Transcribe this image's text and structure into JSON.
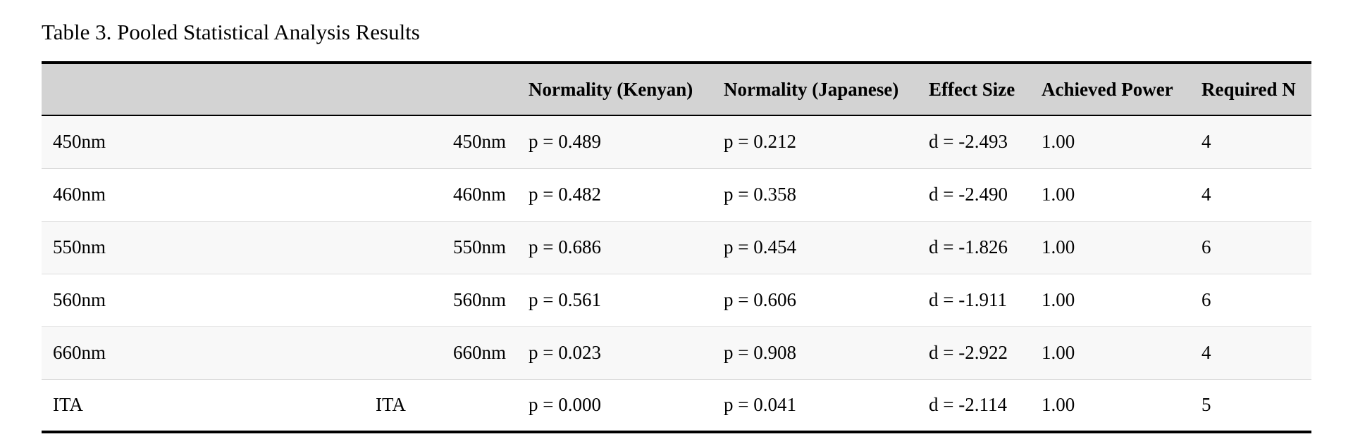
{
  "caption": "Table 3. Pooled Statistical Analysis Results",
  "headers": {
    "col1": "",
    "col2": "",
    "normality_kenyan": "Normality (Kenyan)",
    "normality_japanese": "Normality (Japanese)",
    "effect_size": "Effect Size",
    "achieved_power": "Achieved Power",
    "required_n": "Required N"
  },
  "rows": [
    {
      "name": "450nm",
      "label": "450nm",
      "normality_kenyan": "p = 0.489",
      "normality_japanese": "p = 0.212",
      "effect_size": "d = -2.493",
      "achieved_power": "1.00",
      "required_n": "4"
    },
    {
      "name": "460nm",
      "label": "460nm",
      "normality_kenyan": "p = 0.482",
      "normality_japanese": "p = 0.358",
      "effect_size": "d = -2.490",
      "achieved_power": "1.00",
      "required_n": "4"
    },
    {
      "name": "550nm",
      "label": "550nm",
      "normality_kenyan": "p = 0.686",
      "normality_japanese": "p = 0.454",
      "effect_size": "d = -1.826",
      "achieved_power": "1.00",
      "required_n": "6"
    },
    {
      "name": "560nm",
      "label": "560nm",
      "normality_kenyan": "p = 0.561",
      "normality_japanese": "p = 0.606",
      "effect_size": "d = -1.911",
      "achieved_power": "1.00",
      "required_n": "6"
    },
    {
      "name": "660nm",
      "label": "660nm",
      "normality_kenyan": "p = 0.023",
      "normality_japanese": "p = 0.908",
      "effect_size": "d = -2.922",
      "achieved_power": "1.00",
      "required_n": "4"
    },
    {
      "name": "ITA",
      "label": "ITA",
      "normality_kenyan": "p = 0.000",
      "normality_japanese": "p = 0.041",
      "effect_size": "d = -2.114",
      "achieved_power": "1.00",
      "required_n": "5"
    }
  ]
}
